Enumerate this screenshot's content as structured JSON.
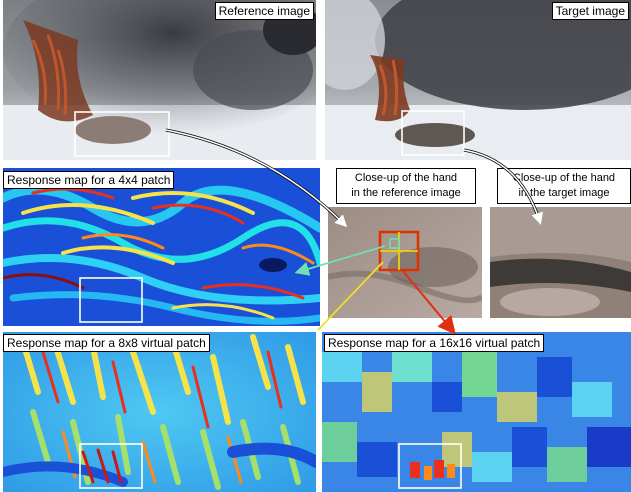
{
  "panels": {
    "reference": {
      "label": "Reference image"
    },
    "target": {
      "label": "Target image"
    },
    "map4": {
      "label": "Response map for a 4x4 patch"
    },
    "map8": {
      "label": "Response map for a 8x8 virtual patch"
    },
    "map16": {
      "label": "Response map for a 16x16 virtual patch"
    }
  },
  "closeups": {
    "reference": {
      "line1": "Close-up of the hand",
      "line2": "in the reference image"
    },
    "target": {
      "line1": "Close-up of the hand",
      "line2": "in the target image"
    }
  },
  "colors": {
    "highlight_box": "#ffffff",
    "patch_outer": "#e03000",
    "patch_inner": "#f0d000",
    "arrow_cyan": "#70e0b0",
    "arrow_yellow": "#f0e020",
    "arrow_red": "#e03010"
  }
}
